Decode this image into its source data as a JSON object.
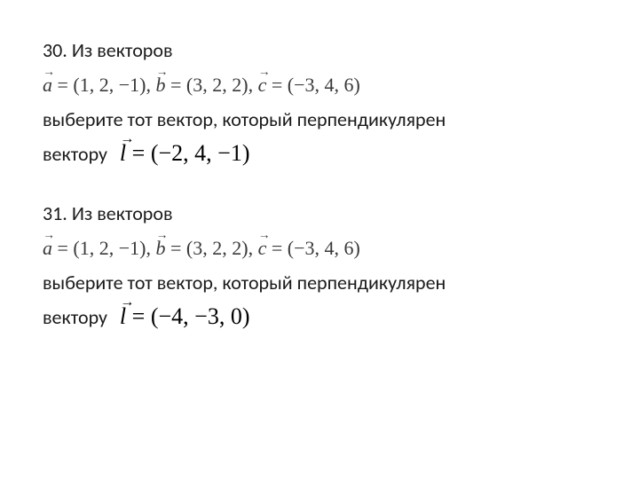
{
  "page": {
    "background_color": "#ffffff",
    "text_color": "#000000",
    "math_color": "#3a3a3a",
    "body_fontsize": 22,
    "math_strong_fontsize": 26,
    "font_body": "Calibri",
    "font_math": "Cambria Math"
  },
  "problems": [
    {
      "number": "30.",
      "intro": "Из векторов",
      "vectors_a_label": "a",
      "vectors_a_value": "(1, 2, −1)",
      "vectors_b_label": "b",
      "vectors_b_value": "(3, 2, 2)",
      "vectors_c_label": "c",
      "vectors_c_value": "(−3, 4, 6)",
      "task_line1": "выберите тот вектор, который перпендикулярен",
      "task_line2": "вектору",
      "l_label": "l",
      "l_value": "(−2, 4, −1)"
    },
    {
      "number": "31.",
      "intro": "Из векторов",
      "vectors_a_label": "a",
      "vectors_a_value": "(1, 2, −1)",
      "vectors_b_label": "b",
      "vectors_b_value": "(3, 2, 2)",
      "vectors_c_label": "c",
      "vectors_c_value": "(−3, 4, 6)",
      "task_line1": "выберите тот вектор, который перпендикулярен",
      "task_line2": "вектору",
      "l_label": "l",
      "l_value": "(−4, −3, 0)"
    }
  ]
}
